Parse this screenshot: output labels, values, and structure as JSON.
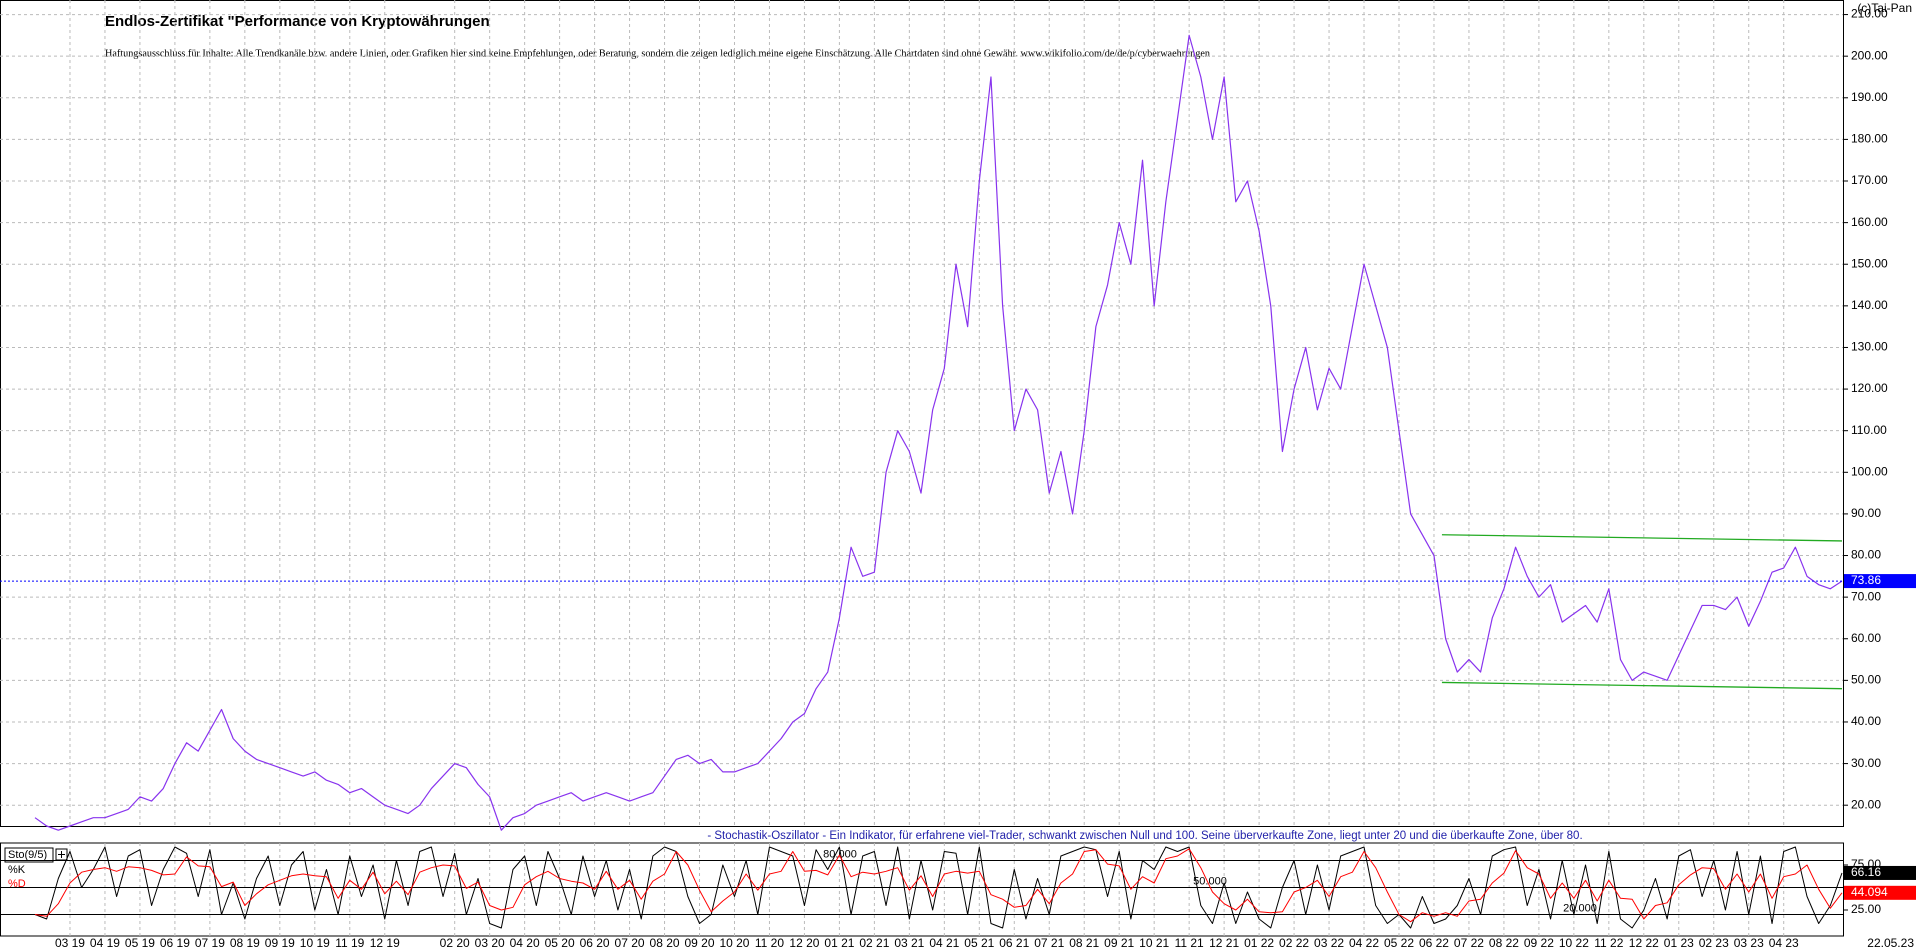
{
  "chart_data": [
    {
      "type": "line",
      "title": "Endlos-Zertifikat \"Performance von Kryptowährungen",
      "subtitle": "Haftungsausschluss für Inhalte: Alle Trendkanäle bzw. andere Linien, oder Grafiken hier sind keine Empfehlungen, oder Beratung, sondern die zeigen lediglich meine eigene Einschätzung. Alle Chartdaten sind ohne Gewähr. www.wikifolio.com/de/de/p/cyberwaehrungen",
      "copyright": "(c)Tai-Pan",
      "last_date": "22.05.23",
      "categories": [
        null,
        null,
        null,
        "03 19",
        null,
        null,
        "04 19",
        null,
        null,
        "05 19",
        null,
        null,
        "06 19",
        null,
        null,
        "07 19",
        null,
        null,
        "08 19",
        null,
        null,
        "09 19",
        null,
        null,
        "10 19",
        null,
        null,
        "11 19",
        null,
        null,
        "12 19",
        null,
        null,
        null,
        null,
        null,
        "02 20",
        null,
        null,
        "03 20",
        null,
        null,
        "04 20",
        null,
        null,
        "05 20",
        null,
        null,
        "06 20",
        null,
        null,
        "07 20",
        null,
        null,
        "08 20",
        null,
        null,
        "09 20",
        null,
        null,
        "10 20",
        null,
        null,
        "11 20",
        null,
        null,
        "12 20",
        null,
        null,
        "01 21",
        null,
        null,
        "02 21",
        null,
        null,
        "03 21",
        null,
        null,
        "04 21",
        null,
        null,
        "05 21",
        null,
        null,
        "06 21",
        null,
        null,
        "07 21",
        null,
        null,
        "08 21",
        null,
        null,
        "09 21",
        null,
        null,
        "10 21",
        null,
        null,
        "11 21",
        null,
        null,
        "12 21",
        null,
        null,
        "01 22",
        null,
        null,
        "02 22",
        null,
        null,
        "03 22",
        null,
        null,
        "04 22",
        null,
        null,
        "05 22",
        null,
        null,
        "06 22",
        null,
        null,
        "07 22",
        null,
        null,
        "08 22",
        null,
        null,
        "09 22",
        null,
        null,
        "10 22",
        null,
        null,
        "11 22",
        null,
        null,
        "12 22",
        null,
        null,
        "01 23",
        null,
        null,
        "02 23",
        null,
        null,
        "03 23",
        null,
        null,
        "04 23",
        null,
        null,
        null,
        null,
        null
      ],
      "series": [
        {
          "color": "#8833ee",
          "values": [
            17,
            15,
            14,
            15,
            16,
            17,
            17,
            18,
            19,
            22,
            21,
            24,
            30,
            35,
            33,
            38,
            43,
            36,
            33,
            31,
            30,
            29,
            28,
            27,
            28,
            26,
            25,
            23,
            24,
            22,
            20,
            19,
            18,
            20,
            24,
            27,
            30,
            29,
            25,
            22,
            14,
            17,
            18,
            20,
            21,
            22,
            23,
            21,
            22,
            23,
            22,
            21,
            22,
            23,
            27,
            31,
            32,
            30,
            31,
            28,
            28,
            29,
            30,
            33,
            36,
            40,
            42,
            48,
            52,
            65,
            82,
            75,
            76,
            100,
            110,
            105,
            95,
            115,
            125,
            150,
            135,
            170,
            195,
            140,
            110,
            120,
            115,
            95,
            105,
            90,
            110,
            135,
            145,
            160,
            150,
            175,
            140,
            165,
            185,
            205,
            195,
            180,
            195,
            165,
            170,
            158,
            140,
            105,
            120,
            130,
            115,
            125,
            120,
            135,
            150,
            140,
            130,
            110,
            90,
            85,
            80,
            60,
            52,
            55,
            52,
            65,
            72,
            82,
            75,
            70,
            73,
            64,
            66,
            68,
            64,
            72,
            55,
            50,
            52,
            51,
            50,
            56,
            62,
            68,
            68,
            67,
            70,
            63,
            69,
            76,
            77,
            82,
            75,
            73,
            72,
            73.86
          ]
        }
      ],
      "ylim": [
        15,
        213.5
      ],
      "yticks": [
        {
          "value": 20,
          "label": "20.00"
        },
        {
          "value": 30,
          "label": "30.00"
        },
        {
          "value": 40,
          "label": "40.00"
        },
        {
          "value": 50,
          "label": "50.00"
        },
        {
          "value": 60,
          "label": "60.00"
        },
        {
          "value": 70,
          "label": "70.00"
        },
        {
          "value": 80,
          "label": "80.00"
        },
        {
          "value": 90,
          "label": "90.00"
        },
        {
          "value": 100,
          "label": "100.00"
        },
        {
          "value": 110,
          "label": "110.00"
        },
        {
          "value": 120,
          "label": "120.00"
        },
        {
          "value": 130,
          "label": "130.00"
        },
        {
          "value": 140,
          "label": "140.00"
        },
        {
          "value": 150,
          "label": "150.00"
        },
        {
          "value": 160,
          "label": "160.00"
        },
        {
          "value": 170,
          "label": "170.00"
        },
        {
          "value": 180,
          "label": "180.00"
        },
        {
          "value": 190,
          "label": "190.00"
        },
        {
          "value": 200,
          "label": "200.00"
        },
        {
          "value": 210,
          "label": "210.00"
        }
      ],
      "grid": true,
      "last_value_color": "#0000ff",
      "trendlines": [
        {
          "color": "#22aa22",
          "x": [
            "07 22",
            "22.05.23"
          ],
          "values": [
            85,
            83.5
          ]
        },
        {
          "color": "#22aa22",
          "x": [
            "07 22",
            "22.05.23"
          ],
          "values": [
            49.5,
            48
          ]
        }
      ]
    },
    {
      "type": "line",
      "title": "- Stochastik-Oszillator - Ein Indikator, für erfahrene viel-Trader, schwankt zwischen Null und 100. Seine überverkaufte Zone, liegt unter 20 und die überkaufte Zone, über 80.",
      "indicator": "Sto(9/5)",
      "series": [
        {
          "name": "%K",
          "color": "#000000",
          "values": [
            20,
            15,
            60,
            90,
            50,
            70,
            95,
            40,
            85,
            92,
            30,
            70,
            95,
            88,
            40,
            92,
            20,
            55,
            15,
            60,
            85,
            30,
            75,
            90,
            25,
            70,
            20,
            85,
            40,
            75,
            15,
            80,
            30,
            90,
            95,
            40,
            88,
            20,
            60,
            10,
            5,
            70,
            85,
            30,
            90,
            60,
            20,
            85,
            40,
            80,
            25,
            70,
            15,
            85,
            95,
            90,
            40,
            10,
            20,
            75,
            40,
            80,
            20,
            95,
            90,
            85,
            30,
            92,
            70,
            95,
            20,
            85,
            90,
            30,
            95,
            15,
            80,
            25,
            90,
            88,
            20,
            95,
            10,
            5,
            70,
            15,
            60,
            20,
            85,
            90,
            95,
            92,
            40,
            90,
            15,
            80,
            70,
            95,
            90,
            95,
            30,
            10,
            55,
            10,
            45,
            15,
            5,
            50,
            80,
            20,
            75,
            25,
            85,
            90,
            95,
            30,
            10,
            20,
            5,
            40,
            10,
            15,
            30,
            60,
            20,
            85,
            92,
            95,
            30,
            70,
            15,
            80,
            20,
            75,
            10,
            90,
            15,
            5,
            25,
            60,
            15,
            85,
            92,
            40,
            80,
            25,
            90,
            20,
            85,
            10,
            90,
            95,
            40,
            10,
            30,
            66.16
          ]
        },
        {
          "name": "%D",
          "color": "#ff0000",
          "values": [
            20,
            18,
            32,
            55,
            67,
            70,
            72,
            68,
            73,
            72,
            69,
            64,
            65,
            84,
            74,
            73,
            51,
            56,
            30,
            43,
            53,
            58,
            63,
            65,
            63,
            62,
            38,
            58,
            48,
            67,
            43,
            57,
            42,
            67,
            72,
            75,
            74,
            49,
            56,
            30,
            25,
            28,
            53,
            62,
            68,
            60,
            57,
            55,
            48,
            68,
            48,
            58,
            37,
            57,
            65,
            90,
            75,
            47,
            23,
            35,
            45,
            65,
            47,
            65,
            68,
            90,
            68,
            69,
            64,
            86,
            62,
            67,
            65,
            68,
            72,
            47,
            63,
            40,
            65,
            68,
            66,
            68,
            42,
            37,
            28,
            30,
            48,
            32,
            55,
            65,
            90,
            92,
            76,
            74,
            48,
            62,
            55,
            82,
            85,
            93,
            72,
            45,
            32,
            25,
            37,
            23,
            22,
            23,
            45,
            50,
            58,
            40,
            62,
            67,
            90,
            72,
            45,
            20,
            12,
            22,
            18,
            22,
            18,
            35,
            37,
            55,
            66,
            91,
            72,
            65,
            38,
            55,
            38,
            58,
            35,
            58,
            38,
            37,
            15,
            30,
            33,
            53,
            64,
            72,
            71,
            48,
            65,
            45,
            65,
            38,
            62,
            65,
            75,
            48,
            27,
            44.094
          ]
        }
      ],
      "ylim": [
        0,
        100
      ],
      "yticks": [
        {
          "value": 25,
          "label": "25.00"
        },
        {
          "value": 75,
          "label": "75.00"
        }
      ],
      "levels": [
        {
          "value": 80,
          "label": "80.000"
        },
        {
          "value": 50,
          "label": "50.000"
        },
        {
          "value": 20,
          "label": "20.000"
        }
      ]
    }
  ]
}
